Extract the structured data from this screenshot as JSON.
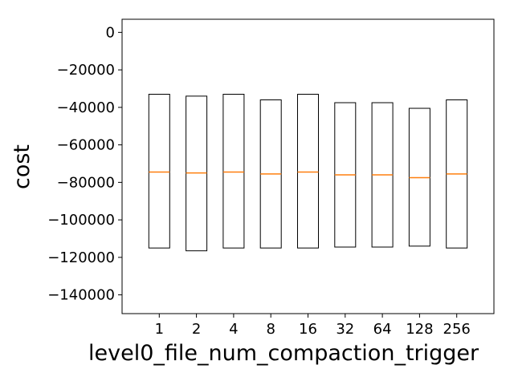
{
  "chart_data": {
    "type": "box",
    "xlabel": "level0_file_num_compaction_trigger",
    "ylabel": "cost",
    "ylim": [
      -150000,
      7000
    ],
    "yticks": [
      0,
      -20000,
      -40000,
      -60000,
      -80000,
      -100000,
      -120000,
      -140000
    ],
    "ytick_labels": [
      "0",
      "−20000",
      "−40000",
      "−60000",
      "−80000",
      "−100000",
      "−120000",
      "−140000"
    ],
    "categories": [
      "1",
      "2",
      "4",
      "8",
      "16",
      "32",
      "64",
      "128",
      "256"
    ],
    "highlight_category": "2",
    "boxes": [
      {
        "q1": -115000,
        "median": -74500,
        "q3": -33000
      },
      {
        "q1": -116500,
        "median": -75000,
        "q3": -34000
      },
      {
        "q1": -115000,
        "median": -74500,
        "q3": -33000
      },
      {
        "q1": -115000,
        "median": -75500,
        "q3": -36000
      },
      {
        "q1": -115000,
        "median": -74500,
        "q3": -33000
      },
      {
        "q1": -114500,
        "median": -76000,
        "q3": -37500
      },
      {
        "q1": -114500,
        "median": -76000,
        "q3": -37500
      },
      {
        "q1": -114000,
        "median": -77500,
        "q3": -40500
      },
      {
        "q1": -115000,
        "median": -75500,
        "q3": -36000
      }
    ],
    "grid": false,
    "colors": {
      "box_edge": "#000000",
      "median": "#ff7f0e",
      "highlight_tick": "#ff0000",
      "text": "#000000"
    }
  }
}
